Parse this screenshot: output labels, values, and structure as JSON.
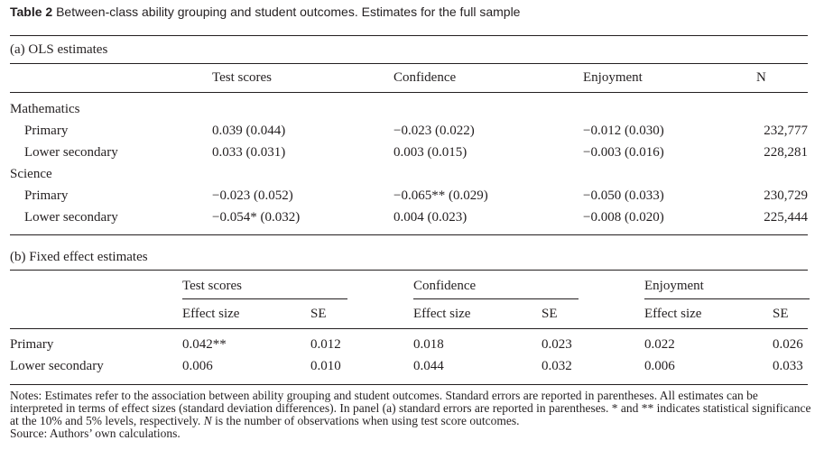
{
  "caption": {
    "label": "Table 2",
    "text": "Between-class ability grouping and student outcomes. Estimates for the full sample"
  },
  "panel_a": {
    "title": "(a) OLS estimates",
    "headers": {
      "test": "Test scores",
      "confidence": "Confidence",
      "enjoyment": "Enjoyment",
      "n": "N"
    },
    "groups": [
      {
        "label": "Mathematics",
        "rows": [
          {
            "label": "Primary",
            "test": "0.039 (0.044)",
            "confidence": "−0.023 (0.022)",
            "enjoyment": "−0.012 (0.030)",
            "n": "232,777"
          },
          {
            "label": "Lower secondary",
            "test": "0.033 (0.031)",
            "confidence": "0.003 (0.015)",
            "enjoyment": "−0.003 (0.016)",
            "n": "228,281"
          }
        ]
      },
      {
        "label": "Science",
        "rows": [
          {
            "label": "Primary",
            "test": "−0.023 (0.052)",
            "confidence": "−0.065** (0.029)",
            "enjoyment": "−0.050 (0.033)",
            "n": "230,729"
          },
          {
            "label": "Lower secondary",
            "test": "−0.054* (0.032)",
            "confidence": "0.004 (0.023)",
            "enjoyment": "−0.008 (0.020)",
            "n": "225,444"
          }
        ]
      }
    ]
  },
  "panel_b": {
    "title": "(b) Fixed effect estimates",
    "groups": [
      "Test scores",
      "Confidence",
      "Enjoyment"
    ],
    "sub_effect": "Effect size",
    "sub_se": "SE",
    "rows": [
      {
        "label": "Primary",
        "test_es": "0.042**",
        "test_se": "0.012",
        "conf_es": "0.018",
        "conf_se": "0.023",
        "enj_es": "0.022",
        "enj_se": "0.026"
      },
      {
        "label": "Lower secondary",
        "test_es": "0.006",
        "test_se": "0.010",
        "conf_es": "0.044",
        "conf_se": "0.032",
        "enj_es": "0.006",
        "enj_se": "0.033"
      }
    ]
  },
  "notes": {
    "line1": "Notes: Estimates refer to the association between ability grouping and student outcomes. Standard errors are reported in parentheses. All estimates can be interpreted in terms of effect sizes (standard deviation differences). In panel (a) standard errors are reported in parentheses. * and ** indicates statistical significance at the 10% and 5% levels, respectively.",
    "n_italic": "N",
    "line1_tail": "is the number of observations when using test score outcomes.",
    "source": "Source: Authors’ own calculations."
  }
}
